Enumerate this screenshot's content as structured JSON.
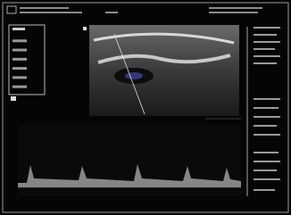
{
  "screen": {
    "menu_rows": 7
  }
}
